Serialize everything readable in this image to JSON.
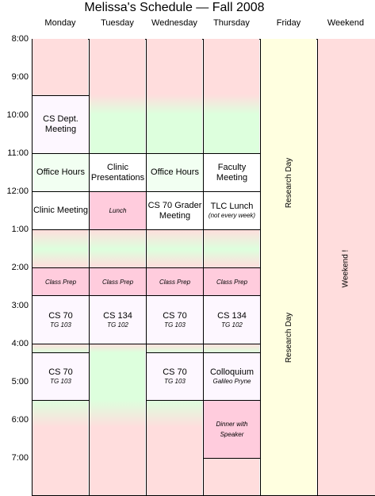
{
  "title": "Melissa's Schedule — Fall 2008",
  "days": [
    "Monday",
    "Tuesday",
    "Wednesday",
    "Thursday",
    "Friday",
    "Weekend"
  ],
  "times": [
    "8:00",
    "9:00",
    "10:00",
    "11:00",
    "12:00",
    "1:00",
    "2:00",
    "3:00",
    "4:00",
    "5:00",
    "6:00",
    "7:00"
  ],
  "events": [
    {
      "title": "CS Dept. Meeting"
    },
    {
      "title": "Office Hours"
    },
    {
      "title": "Clinic Meeting"
    },
    {
      "title": "Class Prep"
    },
    {
      "title": "CS 70",
      "subtitle": "TG 103"
    },
    {
      "title": "CS 70",
      "subtitle": "TG 103"
    },
    {
      "title": "Clinic Presentations"
    },
    {
      "title": "Lunch"
    },
    {
      "title": "Class Prep"
    },
    {
      "title": "CS 134",
      "subtitle": "TG 102"
    },
    {
      "title": "Office Hours"
    },
    {
      "title": "CS 70 Grader Meeting"
    },
    {
      "title": "Class Prep"
    },
    {
      "title": "CS 70",
      "subtitle": "TG 103"
    },
    {
      "title": "CS 70",
      "subtitle": "TG 103"
    },
    {
      "title": "Faculty Meeting"
    },
    {
      "title": "TLC Lunch",
      "subtitle": "(not every week)"
    },
    {
      "title": "Class Prep"
    },
    {
      "title": "CS 134",
      "subtitle": "TG 102"
    },
    {
      "title": "Colloquium",
      "subtitle": "Galileo Pryne"
    },
    {
      "title": "Dinner with Speaker"
    }
  ],
  "friday_labels": [
    "Research Day",
    "Research Day"
  ],
  "weekend_label": "Weekend !"
}
